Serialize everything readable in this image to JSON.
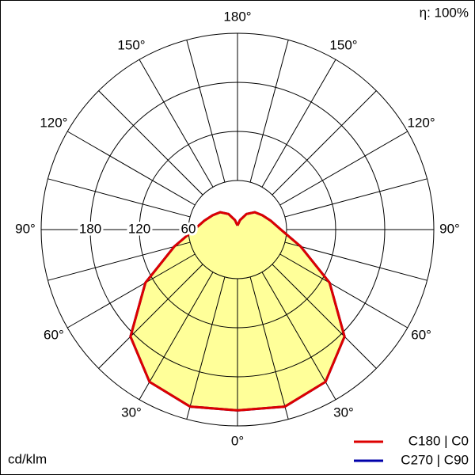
{
  "chart_data": {
    "type": "polar",
    "efficiency_label": "η: 100%",
    "unit_label": "cd/klm",
    "angles": [
      0,
      15,
      30,
      45,
      60,
      75,
      90,
      105,
      120,
      135,
      150,
      165,
      180
    ],
    "angle_ticks": [
      {
        "value": 0,
        "label": "0°"
      },
      {
        "value": 30,
        "label": "30°"
      },
      {
        "value": 60,
        "label": "60°"
      },
      {
        "value": 90,
        "label": "90°"
      },
      {
        "value": 120,
        "label": "120°"
      },
      {
        "value": 150,
        "label": "150°"
      },
      {
        "value": 180,
        "label": "180°"
      }
    ],
    "rlim": [
      0,
      240
    ],
    "rticks": [
      60,
      120,
      180
    ],
    "fill": "#ffff99",
    "series": [
      {
        "name": "C270 | C90",
        "color": "#0000aa",
        "values": [
          221,
          224,
          215,
          185,
          130,
          80,
          53,
          42,
          35,
          30,
          22,
          12,
          5
        ]
      },
      {
        "name": "C180 | C0",
        "color": "#dd0000",
        "values": [
          221,
          224,
          215,
          185,
          130,
          80,
          53,
          42,
          35,
          30,
          22,
          12,
          5
        ]
      }
    ]
  }
}
